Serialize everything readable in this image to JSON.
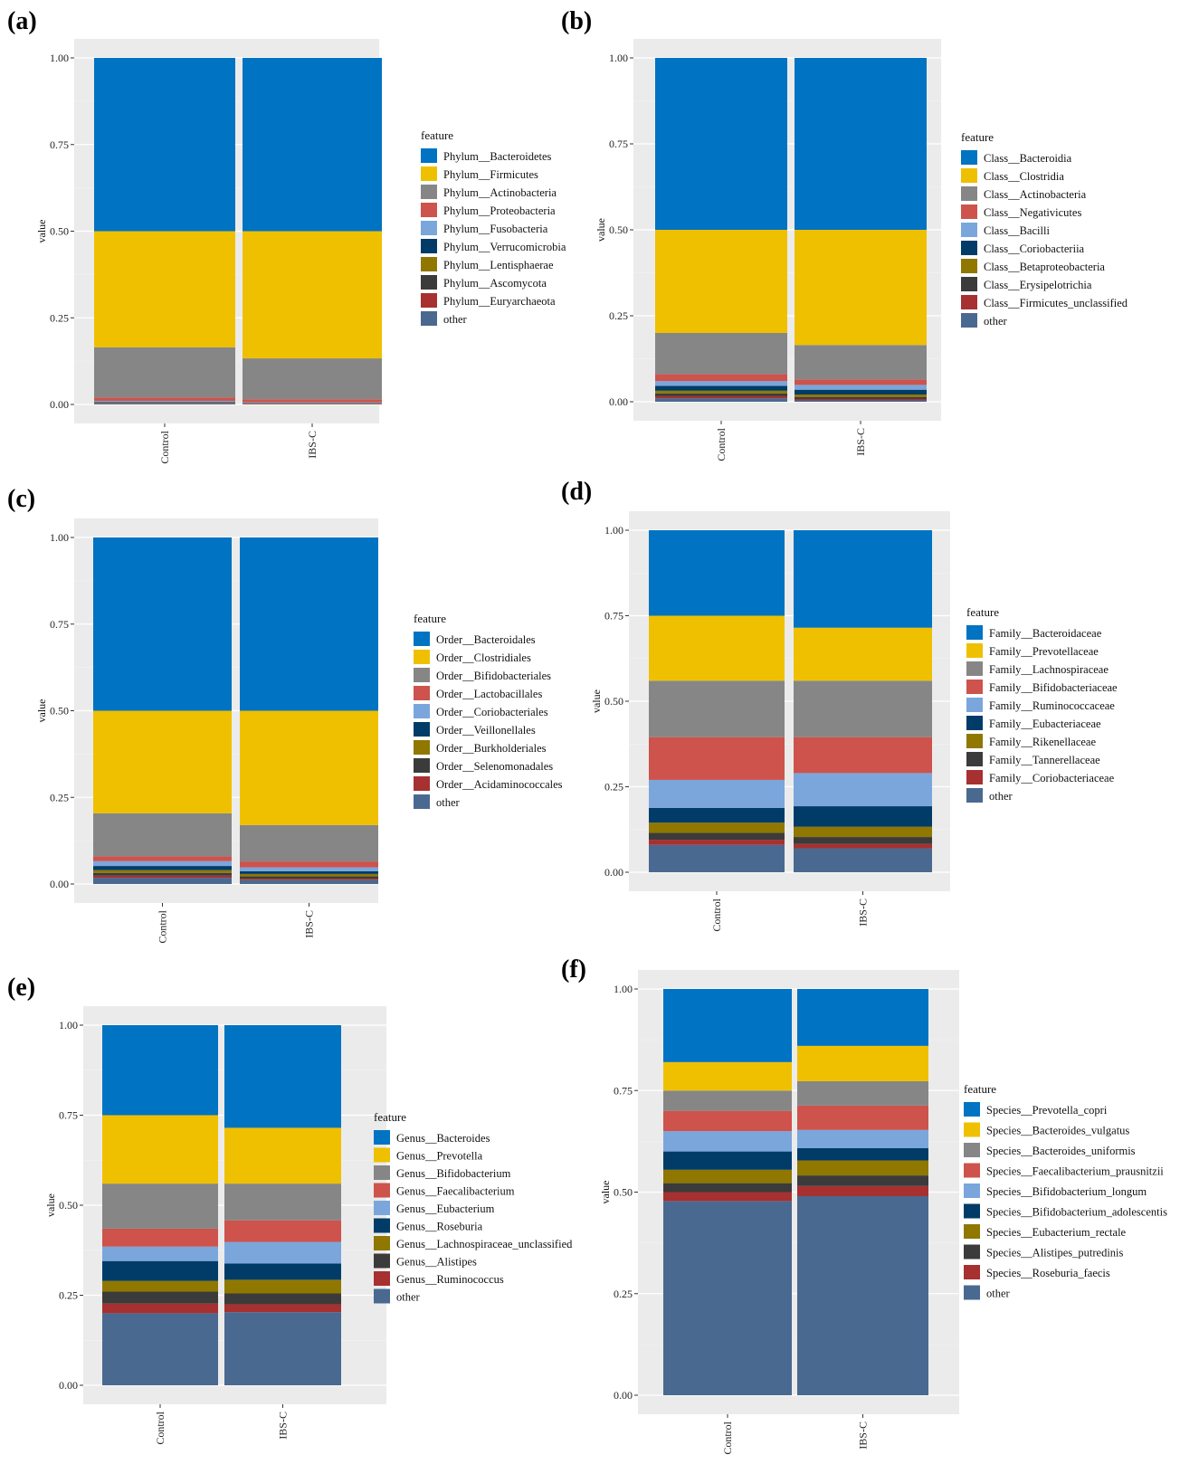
{
  "colors": [
    "#0073c2",
    "#efc000",
    "#868686",
    "#cd534c",
    "#7aa6dc",
    "#003c67",
    "#8f7700",
    "#3b3b3b",
    "#a73030",
    "#4a6990"
  ],
  "legend_title": "feature",
  "y_label": "value",
  "chart_data": [
    {
      "panel": "(a)",
      "type": "bar",
      "stacked": true,
      "categories": [
        "Control",
        "IBS-C"
      ],
      "ylim": [
        0,
        1
      ],
      "yticks": [
        "0.00",
        "0.25",
        "0.50",
        "0.75",
        "1.00"
      ],
      "xlabel": "",
      "ylabel": "value",
      "legend_title": "feature",
      "series": [
        {
          "name": "Phylum__Bacteroidetes",
          "values": [
            0.5,
            0.5
          ]
        },
        {
          "name": "Phylum__Firmicutes",
          "values": [
            0.335,
            0.367
          ]
        },
        {
          "name": "Phylum__Actinobacteria",
          "values": [
            0.145,
            0.118
          ]
        },
        {
          "name": "Phylum__Proteobacteria",
          "values": [
            0.01,
            0.009
          ]
        },
        {
          "name": "Phylum__Fusobacteria",
          "values": [
            0.003,
            0.002
          ]
        },
        {
          "name": "Phylum__Verrucomicrobia",
          "values": [
            0.002,
            0.001
          ]
        },
        {
          "name": "Phylum__Lentisphaerae",
          "values": [
            0.001,
            0.001
          ]
        },
        {
          "name": "Phylum__Ascomycota",
          "values": [
            0.001,
            0.001
          ]
        },
        {
          "name": "Phylum__Euryarchaeota",
          "values": [
            0.001,
            0.001
          ]
        },
        {
          "name": "other",
          "values": [
            0.002,
            0.0
          ]
        }
      ]
    },
    {
      "panel": "(b)",
      "type": "bar",
      "stacked": true,
      "categories": [
        "Control",
        "IBS-C"
      ],
      "ylim": [
        0,
        1
      ],
      "yticks": [
        "0.00",
        "0.25",
        "0.50",
        "0.75",
        "1.00"
      ],
      "xlabel": "",
      "ylabel": "value",
      "legend_title": "feature",
      "series": [
        {
          "name": "Class__Bacteroidia",
          "values": [
            0.5,
            0.5
          ]
        },
        {
          "name": "Class__Clostridia",
          "values": [
            0.3,
            0.335
          ]
        },
        {
          "name": "Class__Actinobacteria",
          "values": [
            0.12,
            0.1
          ]
        },
        {
          "name": "Class__Negativicutes",
          "values": [
            0.02,
            0.016
          ]
        },
        {
          "name": "Class__Bacilli",
          "values": [
            0.014,
            0.014
          ]
        },
        {
          "name": "Class__Coriobacteriia",
          "values": [
            0.014,
            0.014
          ]
        },
        {
          "name": "Class__Betaproteobacteria",
          "values": [
            0.008,
            0.007
          ]
        },
        {
          "name": "Class__Erysipelotrichia",
          "values": [
            0.008,
            0.006
          ]
        },
        {
          "name": "Class__Firmicutes_unclassified",
          "values": [
            0.006,
            0.004
          ]
        },
        {
          "name": "other",
          "values": [
            0.01,
            0.004
          ]
        }
      ]
    },
    {
      "panel": "(c)",
      "type": "bar",
      "stacked": true,
      "categories": [
        "Control",
        "IBS-C"
      ],
      "ylim": [
        0,
        1
      ],
      "yticks": [
        "0.00",
        "0.25",
        "0.50",
        "0.75",
        "1.00"
      ],
      "xlabel": "",
      "ylabel": "value",
      "legend_title": "feature",
      "series": [
        {
          "name": "Order__Bacteroidales",
          "values": [
            0.5,
            0.5
          ]
        },
        {
          "name": "Order__Clostridiales",
          "values": [
            0.296,
            0.33
          ]
        },
        {
          "name": "Order__Bifidobacteriales",
          "values": [
            0.124,
            0.105
          ]
        },
        {
          "name": "Order__Lactobacillales",
          "values": [
            0.014,
            0.017
          ]
        },
        {
          "name": "Order__Coriobacteriales",
          "values": [
            0.014,
            0.011
          ]
        },
        {
          "name": "Order__Veillonellales",
          "values": [
            0.012,
            0.008
          ]
        },
        {
          "name": "Order__Burkholderiales",
          "values": [
            0.008,
            0.007
          ]
        },
        {
          "name": "Order__Selenomonadales",
          "values": [
            0.008,
            0.007
          ]
        },
        {
          "name": "Order__Acidaminococcales",
          "values": [
            0.006,
            0.004
          ]
        },
        {
          "name": "other",
          "values": [
            0.018,
            0.011
          ]
        }
      ]
    },
    {
      "panel": "(d)",
      "type": "bar",
      "stacked": true,
      "categories": [
        "Control",
        "IBS-C"
      ],
      "ylim": [
        0,
        1
      ],
      "yticks": [
        "0.00",
        "0.25",
        "0.50",
        "0.75",
        "1.00"
      ],
      "xlabel": "",
      "ylabel": "value",
      "legend_title": "feature",
      "series": [
        {
          "name": "Family__Bacteroidaceae",
          "values": [
            0.25,
            0.285
          ]
        },
        {
          "name": "Family__Prevotellaceae",
          "values": [
            0.19,
            0.155
          ]
        },
        {
          "name": "Family__Lachnospiraceae",
          "values": [
            0.165,
            0.165
          ]
        },
        {
          "name": "Family__Bifidobacteriaceae",
          "values": [
            0.125,
            0.105
          ]
        },
        {
          "name": "Family__Ruminococcaceae",
          "values": [
            0.082,
            0.097
          ]
        },
        {
          "name": "Family__Eubacteriaceae",
          "values": [
            0.043,
            0.06
          ]
        },
        {
          "name": "Family__Rikenellaceae",
          "values": [
            0.03,
            0.03
          ]
        },
        {
          "name": "Family__Tannerellaceae",
          "values": [
            0.02,
            0.02
          ]
        },
        {
          "name": "Family__Coriobacteriaceae",
          "values": [
            0.015,
            0.013
          ]
        },
        {
          "name": "other",
          "values": [
            0.08,
            0.07
          ]
        }
      ]
    },
    {
      "panel": "(e)",
      "type": "bar",
      "stacked": true,
      "categories": [
        "Control",
        "IBS-C"
      ],
      "ylim": [
        0,
        1
      ],
      "yticks": [
        "0.00",
        "0.25",
        "0.50",
        "0.75",
        "1.00"
      ],
      "xlabel": "",
      "ylabel": "value",
      "legend_title": "feature",
      "series": [
        {
          "name": "Genus__Bacteroides",
          "values": [
            0.25,
            0.285
          ]
        },
        {
          "name": "Genus__Prevotella",
          "values": [
            0.19,
            0.155
          ]
        },
        {
          "name": "Genus__Bifidobacterium",
          "values": [
            0.125,
            0.102
          ]
        },
        {
          "name": "Genus__Faecalibacterium",
          "values": [
            0.05,
            0.06
          ]
        },
        {
          "name": "Genus__Eubacterium",
          "values": [
            0.04,
            0.06
          ]
        },
        {
          "name": "Genus__Roseburia",
          "values": [
            0.055,
            0.045
          ]
        },
        {
          "name": "Genus__Lachnospiraceae_unclassified",
          "values": [
            0.03,
            0.038
          ]
        },
        {
          "name": "Genus__Alistipes",
          "values": [
            0.033,
            0.03
          ]
        },
        {
          "name": "Genus__Ruminococcus",
          "values": [
            0.027,
            0.022
          ]
        },
        {
          "name": "other",
          "values": [
            0.2,
            0.203
          ]
        }
      ]
    },
    {
      "panel": "(f)",
      "type": "bar",
      "stacked": true,
      "categories": [
        "Control",
        "IBS-C"
      ],
      "ylim": [
        0,
        1
      ],
      "yticks": [
        "0.00",
        "0.25",
        "0.50",
        "0.75",
        "1.00"
      ],
      "xlabel": "",
      "ylabel": "value",
      "legend_title": "feature",
      "series": [
        {
          "name": "Species__Prevotella_copri",
          "values": [
            0.18,
            0.14
          ]
        },
        {
          "name": "Species__Bacteroides_vulgatus",
          "values": [
            0.07,
            0.087
          ]
        },
        {
          "name": "Species__Bacteroides_uniformis",
          "values": [
            0.05,
            0.06
          ]
        },
        {
          "name": "Species__Faecalibacterium_prausnitzii",
          "values": [
            0.05,
            0.06
          ]
        },
        {
          "name": "Species__Bifidobacterium_longum",
          "values": [
            0.05,
            0.045
          ]
        },
        {
          "name": "Species__Bifidobacterium_adolescentis",
          "values": [
            0.045,
            0.03
          ]
        },
        {
          "name": "Species__Eubacterium_rectale",
          "values": [
            0.033,
            0.037
          ]
        },
        {
          "name": "Species__Alistipes_putredinis",
          "values": [
            0.022,
            0.026
          ]
        },
        {
          "name": "Species__Roseburia_faecis",
          "values": [
            0.022,
            0.025
          ]
        },
        {
          "name": "other",
          "values": [
            0.478,
            0.49
          ]
        }
      ]
    }
  ]
}
